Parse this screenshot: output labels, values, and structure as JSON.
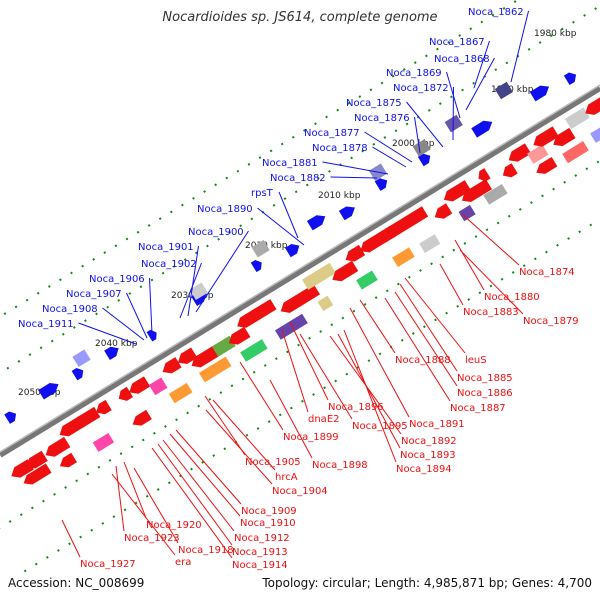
{
  "title": "Nocardioides sp. JS614, complete genome",
  "footer": {
    "accession": "Accession: NC_008699",
    "summary": "Topology: circular; Length: 4,985,871 bp; Genes: 4,700"
  },
  "colors": {
    "forward": "#1010ee",
    "reverse": "#ee1010",
    "backbone": "#777777",
    "ticks": "#118811"
  },
  "ruler_labels": [
    "1980 kbp",
    "1990 kbp",
    "2000 kbp",
    "2010 kbp",
    "2020 kbp",
    "2030 kbp",
    "2040 kbp",
    "2050 kbp"
  ],
  "forward_genes": [
    "Noca_1862",
    "Noca_1867",
    "Noca_1868",
    "Noca_1869",
    "Noca_1872",
    "Noca_1875",
    "Noca_1876",
    "Noca_1877",
    "Noca_1878",
    "Noca_1881",
    "Noca_1882",
    "rpsT",
    "Noca_1890",
    "Noca_1900",
    "Noca_1901",
    "Noca_1902",
    "Noca_1906",
    "Noca_1907",
    "Noca_1908",
    "Noca_1911"
  ],
  "reverse_genes": [
    "Noca_1874",
    "Noca_1880",
    "Noca_1879",
    "Noca_1883",
    "Noca_1888",
    "leuS",
    "Noca_1885",
    "Noca_1886",
    "Noca_1887",
    "Noca_1891",
    "Noca_1896",
    "dnaE2",
    "Noca_1895",
    "Noca_1892",
    "Noca_1893",
    "Noca_1894",
    "Noca_1899",
    "Noca_1898",
    "Noca_1905",
    "hrcA",
    "Noca_1904",
    "Noca_1909",
    "Noca_1910",
    "Noca_1912",
    "Noca_1913",
    "Noca_1914",
    "Noca_1920",
    "Noca_1923",
    "Noca_1918",
    "era",
    "Noca_1927"
  ]
}
